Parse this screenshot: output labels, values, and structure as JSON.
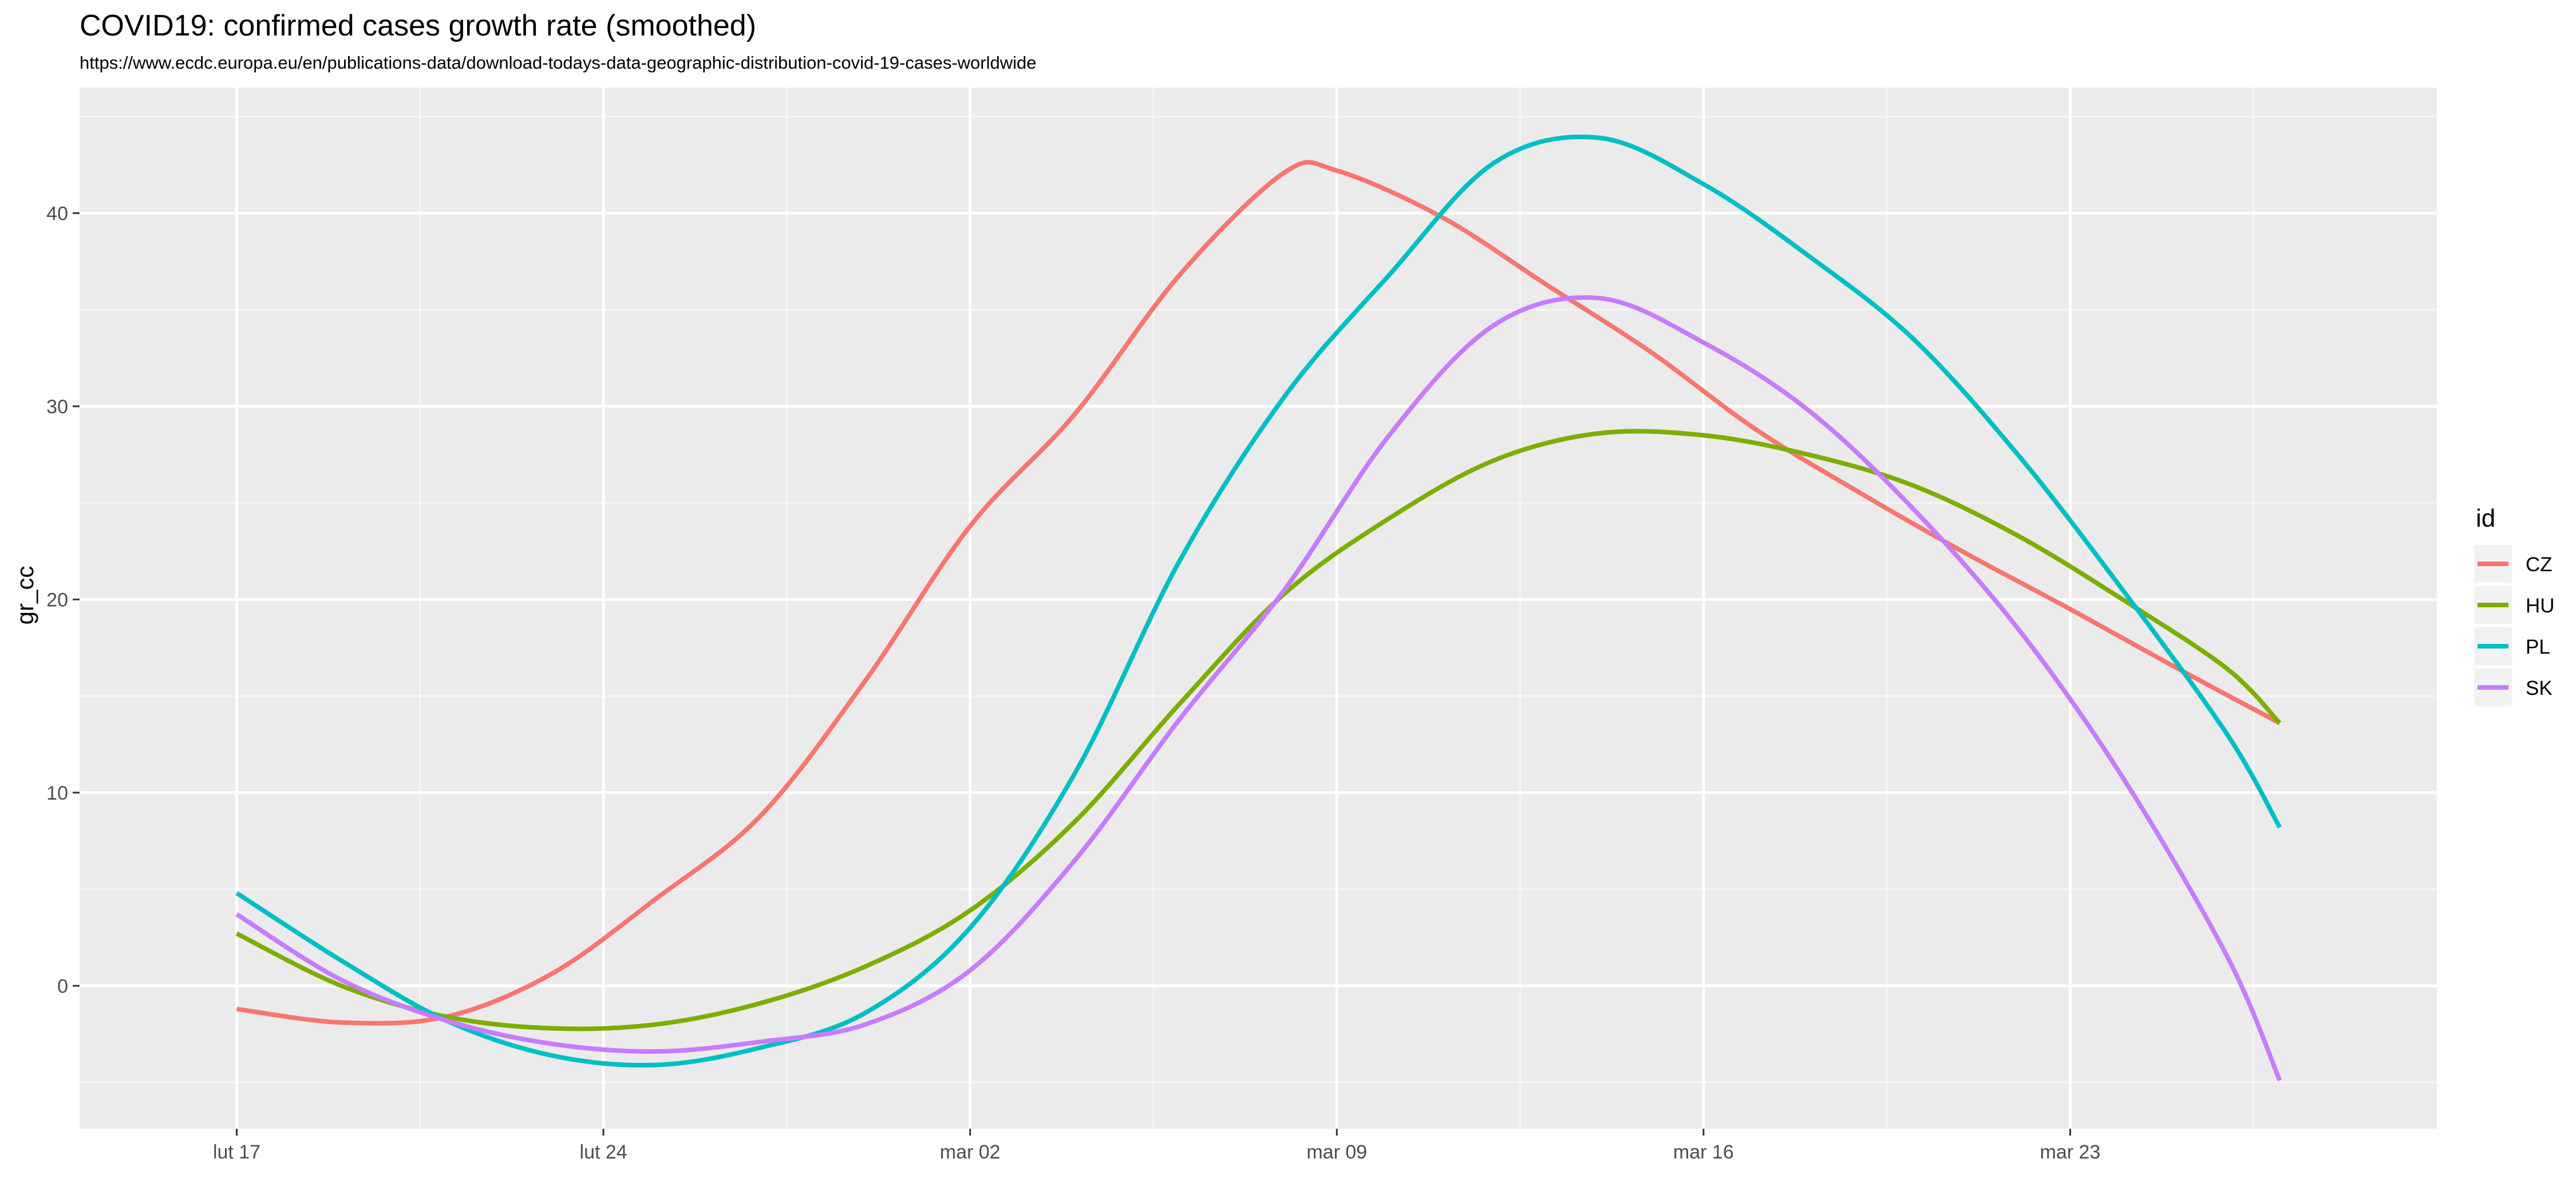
{
  "chart_data": {
    "type": "line",
    "title": "COVID19: confirmed cases growth rate (smoothed)",
    "subtitle": "https://www.ecdc.europa.eu/en/publications-data/download-todays-data-geographic-distribution-covid-19-cases-worldwide",
    "xlabel": "",
    "ylabel": "gr_cc",
    "x_axis": {
      "type": "date",
      "range": [
        "2020-02-14",
        "2020-03-30"
      ],
      "ticks": [
        {
          "value": "2020-02-17",
          "label": "lut 17"
        },
        {
          "value": "2020-02-24",
          "label": "lut 24"
        },
        {
          "value": "2020-03-02",
          "label": "mar 02"
        },
        {
          "value": "2020-03-09",
          "label": "mar 09"
        },
        {
          "value": "2020-03-16",
          "label": "mar 16"
        },
        {
          "value": "2020-03-23",
          "label": "mar 23"
        }
      ]
    },
    "ylim": [
      -7.4,
      46.5
    ],
    "y_ticks": [
      0,
      10,
      20,
      30,
      40
    ],
    "grid": true,
    "legend": {
      "title": "id",
      "placement": "right"
    },
    "series": [
      {
        "name": "CZ",
        "color": "#F8766D",
        "points": [
          [
            "2020-02-17",
            -1.2
          ],
          [
            "2020-02-19",
            -1.9
          ],
          [
            "2020-02-21",
            -1.6
          ],
          [
            "2020-02-23",
            0.6
          ],
          [
            "2020-02-25",
            4.5
          ],
          [
            "2020-02-27",
            8.8
          ],
          [
            "2020-02-29",
            15.8
          ],
          [
            "2020-03-02",
            23.8
          ],
          [
            "2020-03-04",
            29.6
          ],
          [
            "2020-03-06",
            36.8
          ],
          [
            "2020-03-08",
            42.1
          ],
          [
            "2020-03-09",
            42.2
          ],
          [
            "2020-03-11",
            39.8
          ],
          [
            "2020-03-13",
            36.3
          ],
          [
            "2020-03-15",
            32.8
          ],
          [
            "2020-03-17",
            28.8
          ],
          [
            "2020-03-19",
            25.5
          ],
          [
            "2020-03-21",
            22.4
          ],
          [
            "2020-03-23",
            19.5
          ],
          [
            "2020-03-25",
            16.5
          ],
          [
            "2020-03-27",
            13.6
          ]
        ]
      },
      {
        "name": "HU",
        "color": "#7CAE00",
        "points": [
          [
            "2020-02-17",
            2.7
          ],
          [
            "2020-02-19",
            0.0
          ],
          [
            "2020-02-21",
            -1.6
          ],
          [
            "2020-02-23",
            -2.2
          ],
          [
            "2020-02-25",
            -2.0
          ],
          [
            "2020-02-27",
            -0.9
          ],
          [
            "2020-02-29",
            1.0
          ],
          [
            "2020-03-02",
            3.9
          ],
          [
            "2020-03-04",
            8.5
          ],
          [
            "2020-03-06",
            14.6
          ],
          [
            "2020-03-08",
            20.3
          ],
          [
            "2020-03-10",
            24.2
          ],
          [
            "2020-03-12",
            27.2
          ],
          [
            "2020-03-14",
            28.6
          ],
          [
            "2020-03-16",
            28.5
          ],
          [
            "2020-03-18",
            27.5
          ],
          [
            "2020-03-20",
            25.9
          ],
          [
            "2020-03-22",
            23.3
          ],
          [
            "2020-03-24",
            20.0
          ],
          [
            "2020-03-26",
            16.4
          ],
          [
            "2020-03-27",
            13.6
          ]
        ]
      },
      {
        "name": "PL",
        "color": "#00BFC4",
        "points": [
          [
            "2020-02-17",
            4.8
          ],
          [
            "2020-02-19",
            1.3
          ],
          [
            "2020-02-21",
            -1.8
          ],
          [
            "2020-02-23",
            -3.6
          ],
          [
            "2020-02-25",
            -4.1
          ],
          [
            "2020-02-27",
            -3.2
          ],
          [
            "2020-02-29",
            -1.4
          ],
          [
            "2020-03-02",
            3.0
          ],
          [
            "2020-03-04",
            11.0
          ],
          [
            "2020-03-06",
            22.0
          ],
          [
            "2020-03-08",
            30.5
          ],
          [
            "2020-03-10",
            36.8
          ],
          [
            "2020-03-12",
            42.6
          ],
          [
            "2020-03-14",
            43.9
          ],
          [
            "2020-03-16",
            41.5
          ],
          [
            "2020-03-18",
            37.8
          ],
          [
            "2020-03-20",
            33.5
          ],
          [
            "2020-03-22",
            27.5
          ],
          [
            "2020-03-24",
            20.5
          ],
          [
            "2020-03-26",
            13.0
          ],
          [
            "2020-03-27",
            8.2
          ]
        ]
      },
      {
        "name": "SK",
        "color": "#C77CFF",
        "points": [
          [
            "2020-02-17",
            3.7
          ],
          [
            "2020-02-19",
            0.3
          ],
          [
            "2020-02-21",
            -1.8
          ],
          [
            "2020-02-23",
            -3.0
          ],
          [
            "2020-02-25",
            -3.4
          ],
          [
            "2020-02-27",
            -2.9
          ],
          [
            "2020-02-29",
            -2.0
          ],
          [
            "2020-03-02",
            0.8
          ],
          [
            "2020-03-04",
            6.5
          ],
          [
            "2020-03-06",
            13.8
          ],
          [
            "2020-03-08",
            20.5
          ],
          [
            "2020-03-10",
            28.5
          ],
          [
            "2020-03-12",
            34.2
          ],
          [
            "2020-03-14",
            35.6
          ],
          [
            "2020-03-16",
            33.3
          ],
          [
            "2020-03-18",
            29.8
          ],
          [
            "2020-03-20",
            24.7
          ],
          [
            "2020-03-22",
            18.5
          ],
          [
            "2020-03-24",
            10.8
          ],
          [
            "2020-03-26",
            1.5
          ],
          [
            "2020-03-27",
            -4.9
          ]
        ]
      }
    ]
  }
}
